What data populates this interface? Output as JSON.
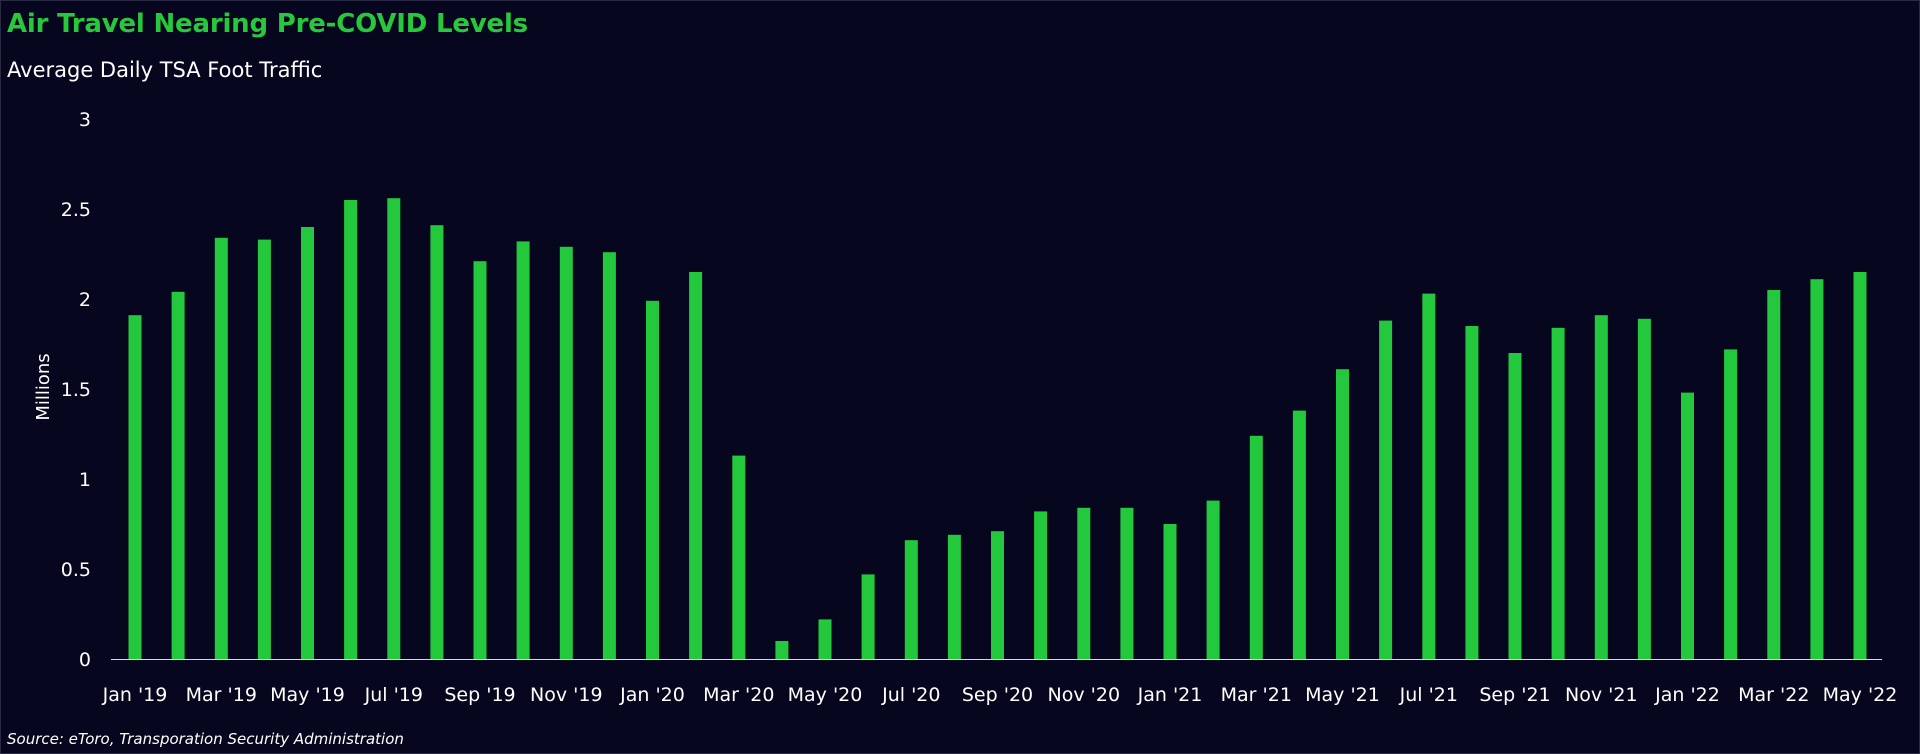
{
  "title": "Air Travel Nearing Pre-COVID Levels",
  "subtitle": "Average Daily TSA Foot Traffic",
  "source": "Source: eToro, Transporation Security Administration",
  "colors": {
    "background": "#06061e",
    "bar": "#24c83c",
    "title": "#28c83c",
    "text": "#ffffff"
  },
  "chart_data": {
    "type": "bar",
    "title": "Air Travel Nearing Pre-COVID Levels",
    "subtitle": "Average Daily TSA Foot Traffic",
    "xlabel": "",
    "ylabel": "Millions",
    "ylim": [
      0,
      3
    ],
    "yticks": [
      "0",
      "0.5",
      "1",
      "1.5",
      "2",
      "2.5",
      "3"
    ],
    "grid": false,
    "legend": "none",
    "categories": [
      "Jan '19",
      "Feb '19",
      "Mar '19",
      "Apr '19",
      "May '19",
      "Jun '19",
      "Jul '19",
      "Aug '19",
      "Sep '19",
      "Oct '19",
      "Nov '19",
      "Dec '19",
      "Jan '20",
      "Feb '20",
      "Mar '20",
      "Apr '20",
      "May '20",
      "Jun '20",
      "Jul '20",
      "Aug '20",
      "Sep '20",
      "Oct '20",
      "Nov '20",
      "Dec '20",
      "Jan '21",
      "Feb '21",
      "Mar '21",
      "Apr '21",
      "May '21",
      "Jun '21",
      "Jul '21",
      "Aug '21",
      "Sep '21",
      "Oct '21",
      "Nov '21",
      "Dec '21",
      "Jan '22",
      "Feb '22",
      "Mar '22",
      "Apr '22",
      "May '22"
    ],
    "xtick_labels": [
      "Jan '19",
      "Mar '19",
      "May '19",
      "Jul '19",
      "Sep '19",
      "Nov '19",
      "Jan '20",
      "Mar '20",
      "May '20",
      "Jul '20",
      "Sep '20",
      "Nov '20",
      "Jan '21",
      "Mar '21",
      "May '21",
      "Jul '21",
      "Sep '21",
      "Nov '21",
      "Jan '22",
      "Mar '22",
      "May '22"
    ],
    "values": [
      1.91,
      2.04,
      2.34,
      2.33,
      2.4,
      2.55,
      2.56,
      2.41,
      2.21,
      2.32,
      2.29,
      2.26,
      1.99,
      2.15,
      1.13,
      0.1,
      0.22,
      0.47,
      0.66,
      0.69,
      0.71,
      0.82,
      0.84,
      0.84,
      0.75,
      0.88,
      1.24,
      1.38,
      1.61,
      1.88,
      2.03,
      1.85,
      1.7,
      1.84,
      1.91,
      1.89,
      1.48,
      1.72,
      2.05,
      2.11,
      2.15
    ]
  }
}
